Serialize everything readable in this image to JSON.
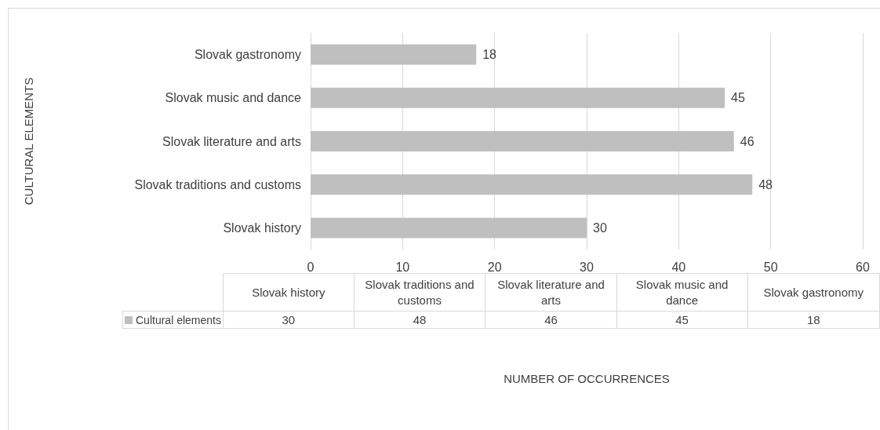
{
  "chart_data": {
    "type": "bar",
    "orientation": "horizontal",
    "annotations": [
      "CULTURAL ELEMENTS",
      "NUMBER OF OCCURRENCES"
    ],
    "categories": [
      "Slovak gastronomy",
      "Slovak music and dance",
      "Slovak literature and arts",
      "Slovak traditions and customs",
      "Slovak history"
    ],
    "series": [
      {
        "name": "Cultural elements",
        "color": "#bfbfbf",
        "values": [
          18,
          45,
          46,
          48,
          30
        ],
        "value_labels": [
          "18",
          "45",
          "46",
          "48",
          "30"
        ]
      }
    ],
    "xlim": [
      0,
      60
    ],
    "xticks": [
      0,
      10,
      20,
      30,
      40,
      50,
      60
    ],
    "grid": "x",
    "legend": "bottom left"
  }
}
